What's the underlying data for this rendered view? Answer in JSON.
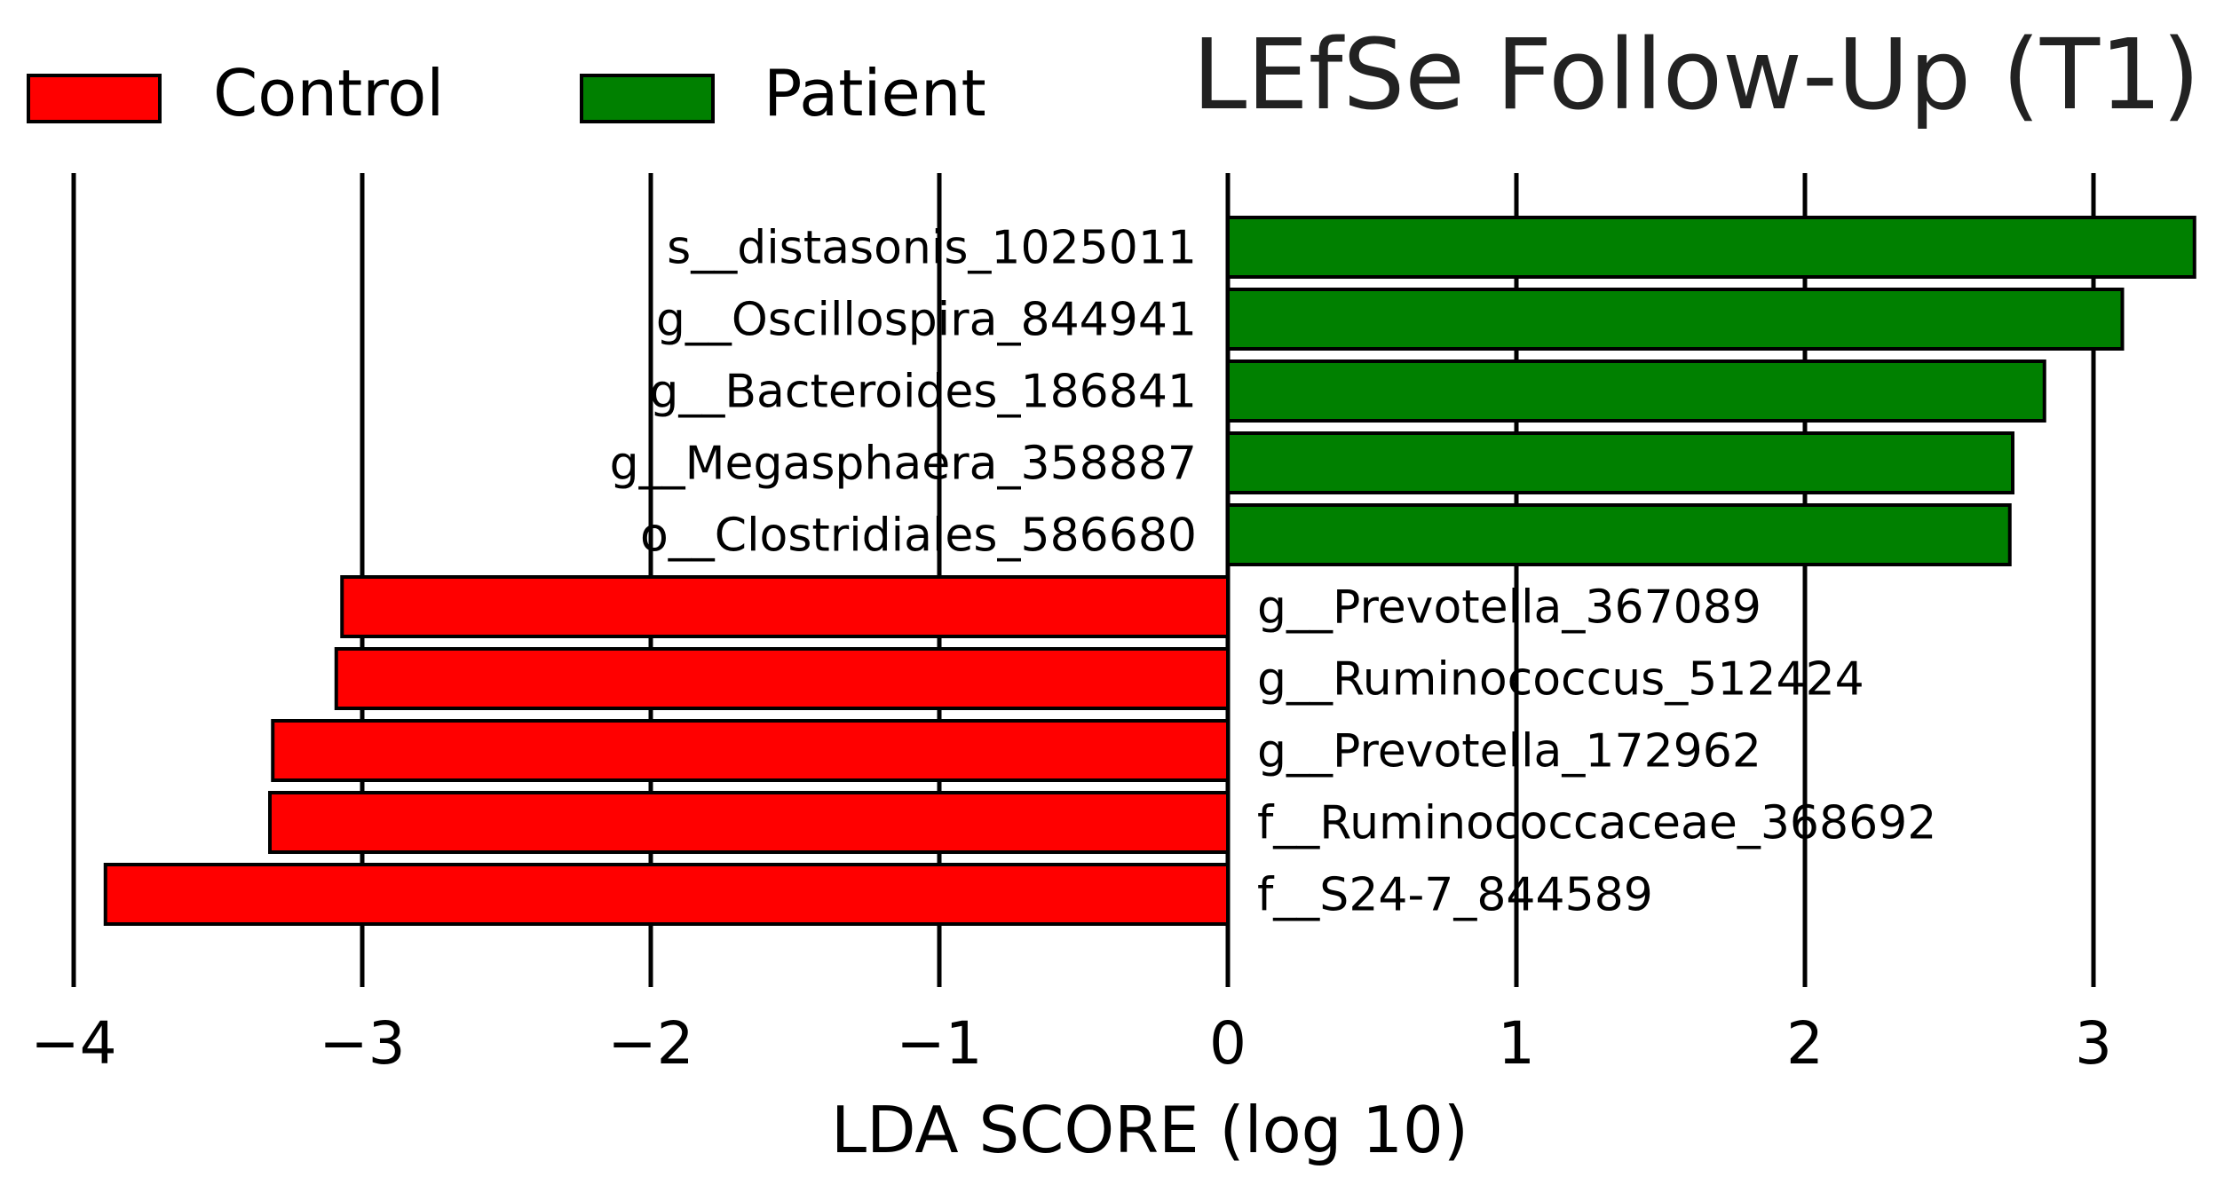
{
  "chart_data": {
    "type": "bar",
    "orientation": "horizontal",
    "title": "LEfSe Follow-Up (T1)",
    "xlabel": "LDA SCORE (log 10)",
    "ylabel": "",
    "xlim": [
      -4.2,
      3.4
    ],
    "xticks": [
      -4,
      -3,
      -2,
      -1,
      0,
      1,
      2,
      3
    ],
    "xtick_labels": [
      "−4",
      "−3",
      "−2",
      "−1",
      "0",
      "1",
      "2",
      "3"
    ],
    "grid": "vertical",
    "legend_position": "top-left",
    "legend": [
      {
        "name": "Control",
        "color": "#ff0000"
      },
      {
        "name": "Patient",
        "color": "#008000"
      }
    ],
    "categories": [
      "s__distasonis_1025011",
      "g__Oscillospira_844941",
      "g__Bacteroides_186841",
      "g__Megasphaera_358887",
      "o__Clostridiales_586680",
      "g__Prevotella_367089",
      "g__Ruminococcus_512424",
      "g__Prevotella_172962",
      "f__Ruminococcaceae_368692",
      "f__S24-7_844589"
    ],
    "values": [
      3.35,
      3.1,
      2.83,
      2.72,
      2.71,
      -3.07,
      -3.09,
      -3.31,
      -3.32,
      -3.89
    ],
    "groups": [
      "Patient",
      "Patient",
      "Patient",
      "Patient",
      "Patient",
      "Control",
      "Control",
      "Control",
      "Control",
      "Control"
    ]
  }
}
